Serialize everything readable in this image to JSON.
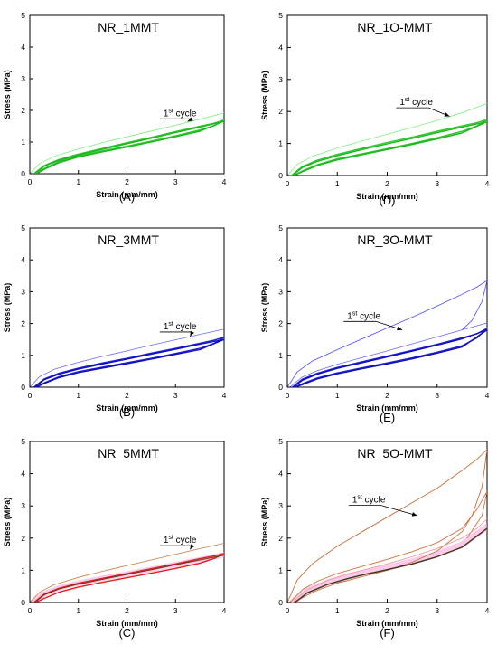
{
  "chart_data": [
    {
      "type": "line",
      "panel_label": "(A)",
      "title": "NR_1MMT",
      "xlabel": "Strain (mm/mm)",
      "ylabel": "Stress (MPa)",
      "xlim": [
        0,
        4
      ],
      "ylim": [
        0,
        5
      ],
      "xticks": [
        "0",
        "1",
        "2",
        "3",
        "4"
      ],
      "yticks": [
        "0",
        "1",
        "2",
        "3",
        "4",
        "5"
      ],
      "grid": false,
      "annotation": {
        "text": "cycle",
        "superscript": "st",
        "prefix": "1",
        "x": 2.75,
        "y": 1.82,
        "arrow_to": [
          3.25,
          1.65
        ]
      },
      "series": [
        {
          "color": "#7cf07c",
          "width": 0.8,
          "x": [
            0.0,
            0.2,
            0.5,
            1.0,
            1.5,
            2.0,
            2.5,
            3.0,
            3.5,
            4.0
          ],
          "y": [
            0.0,
            0.32,
            0.55,
            0.78,
            0.98,
            1.17,
            1.35,
            1.53,
            1.72,
            1.92
          ]
        },
        {
          "color": "#28c828",
          "width": 1.4,
          "x": [
            0.08,
            0.3,
            0.6,
            1.0,
            1.5,
            2.0,
            2.5,
            3.0,
            3.5,
            3.8,
            4.0,
            3.8,
            3.5,
            3.0,
            2.5,
            2.0,
            1.5,
            1.0,
            0.6,
            0.3,
            0.12
          ],
          "y": [
            0.0,
            0.26,
            0.45,
            0.62,
            0.8,
            0.98,
            1.15,
            1.33,
            1.5,
            1.6,
            1.7,
            1.52,
            1.38,
            1.2,
            1.03,
            0.87,
            0.72,
            0.56,
            0.38,
            0.17,
            0.0
          ]
        },
        {
          "color": "#1fb51f",
          "width": 1.4,
          "x": [
            0.1,
            0.3,
            0.6,
            1.0,
            1.5,
            2.0,
            2.5,
            3.0,
            3.5,
            4.0,
            3.5,
            3.0,
            2.5,
            2.0,
            1.5,
            1.0,
            0.6,
            0.3,
            0.14
          ],
          "y": [
            0.0,
            0.24,
            0.42,
            0.59,
            0.77,
            0.95,
            1.12,
            1.3,
            1.47,
            1.66,
            1.34,
            1.17,
            1.0,
            0.84,
            0.69,
            0.53,
            0.35,
            0.14,
            0.0
          ]
        }
      ]
    },
    {
      "type": "line",
      "panel_label": "(D)",
      "title": "NR_1O-MMT",
      "xlabel": "Strain (mm/mm)",
      "ylabel": "Stress (MPa)",
      "xlim": [
        0,
        4
      ],
      "ylim": [
        0,
        5
      ],
      "xticks": [
        "0",
        "1",
        "2",
        "3",
        "4"
      ],
      "yticks": [
        "0",
        "1",
        "2",
        "3",
        "4",
        "5"
      ],
      "grid": false,
      "annotation": {
        "text": "cycle",
        "superscript": "st",
        "prefix": "1",
        "x": 2.25,
        "y": 2.2,
        "arrow_to": [
          3.25,
          1.85
        ]
      },
      "series": [
        {
          "color": "#7cf07c",
          "width": 0.8,
          "x": [
            0.0,
            0.2,
            0.5,
            1.0,
            1.5,
            2.0,
            2.5,
            3.0,
            3.5,
            4.0
          ],
          "y": [
            0.0,
            0.35,
            0.6,
            0.86,
            1.08,
            1.29,
            1.5,
            1.72,
            1.96,
            2.25
          ]
        },
        {
          "color": "#28c828",
          "width": 1.4,
          "x": [
            0.08,
            0.3,
            0.6,
            1.0,
            1.5,
            2.0,
            2.5,
            3.0,
            3.5,
            3.8,
            4.0,
            3.8,
            3.5,
            3.0,
            2.5,
            2.0,
            1.5,
            1.0,
            0.6,
            0.3,
            0.12
          ],
          "y": [
            0.0,
            0.28,
            0.48,
            0.66,
            0.85,
            1.03,
            1.2,
            1.38,
            1.55,
            1.65,
            1.75,
            1.55,
            1.38,
            1.18,
            1.0,
            0.84,
            0.68,
            0.52,
            0.34,
            0.14,
            0.0
          ]
        },
        {
          "color": "#1fb51f",
          "width": 1.4,
          "x": [
            0.1,
            0.3,
            0.6,
            1.0,
            1.5,
            2.0,
            2.5,
            3.0,
            3.5,
            4.0,
            3.5,
            3.0,
            2.5,
            2.0,
            1.5,
            1.0,
            0.6,
            0.3,
            0.14
          ],
          "y": [
            0.0,
            0.25,
            0.44,
            0.62,
            0.81,
            0.99,
            1.16,
            1.34,
            1.51,
            1.68,
            1.33,
            1.14,
            0.97,
            0.81,
            0.65,
            0.49,
            0.31,
            0.12,
            0.0
          ]
        }
      ]
    },
    {
      "type": "line",
      "panel_label": "(B)",
      "title": "NR_3MMT",
      "xlabel": "Strain (mm/mm)",
      "ylabel": "Stress (MPa)",
      "xlim": [
        0,
        4
      ],
      "ylim": [
        0,
        5
      ],
      "xticks": [
        "0",
        "1",
        "2",
        "3",
        "4"
      ],
      "yticks": [
        "0",
        "1",
        "2",
        "3",
        "4",
        "5"
      ],
      "grid": false,
      "annotation": {
        "text": "cycle",
        "superscript": "st",
        "prefix": "1",
        "x": 2.75,
        "y": 1.82,
        "arrow_to": [
          3.3,
          1.6
        ]
      },
      "series": [
        {
          "color": "#6a6aff",
          "width": 0.8,
          "x": [
            0.0,
            0.2,
            0.5,
            1.0,
            1.5,
            2.0,
            2.5,
            3.0,
            3.5,
            4.0
          ],
          "y": [
            0.0,
            0.33,
            0.56,
            0.78,
            0.97,
            1.14,
            1.32,
            1.49,
            1.66,
            1.82
          ]
        },
        {
          "color": "#2020dd",
          "width": 1.4,
          "x": [
            0.08,
            0.3,
            0.6,
            1.0,
            1.5,
            2.0,
            2.5,
            3.0,
            3.5,
            3.8,
            4.0,
            3.8,
            3.5,
            3.0,
            2.5,
            2.0,
            1.5,
            1.0,
            0.6,
            0.3,
            0.12
          ],
          "y": [
            0.0,
            0.26,
            0.44,
            0.6,
            0.76,
            0.91,
            1.07,
            1.22,
            1.38,
            1.48,
            1.57,
            1.38,
            1.22,
            1.06,
            0.91,
            0.77,
            0.63,
            0.49,
            0.33,
            0.14,
            0.0
          ]
        },
        {
          "color": "#1010b8",
          "width": 1.4,
          "x": [
            0.1,
            0.3,
            0.6,
            1.0,
            1.5,
            2.0,
            2.5,
            3.0,
            3.5,
            4.0,
            3.5,
            3.0,
            2.5,
            2.0,
            1.5,
            1.0,
            0.6,
            0.3,
            0.14
          ],
          "y": [
            0.0,
            0.24,
            0.41,
            0.57,
            0.73,
            0.88,
            1.04,
            1.19,
            1.35,
            1.5,
            1.18,
            1.03,
            0.88,
            0.74,
            0.6,
            0.46,
            0.3,
            0.12,
            0.0
          ]
        }
      ]
    },
    {
      "type": "line",
      "panel_label": "(E)",
      "title": "NR_3O-MMT",
      "xlabel": "Strain (mm/mm)",
      "ylabel": "Stress (MPa)",
      "xlim": [
        0,
        4
      ],
      "ylim": [
        0,
        5
      ],
      "xticks": [
        "0",
        "1",
        "2",
        "3",
        "4"
      ],
      "yticks": [
        "0",
        "1",
        "2",
        "3",
        "4",
        "5"
      ],
      "grid": false,
      "annotation": {
        "text": "cycle",
        "superscript": "st",
        "prefix": "1",
        "x": 1.2,
        "y": 2.15,
        "arrow_to": [
          2.3,
          1.8
        ]
      },
      "series": [
        {
          "color": "#4b4bff",
          "width": 0.8,
          "x": [
            0.0,
            0.2,
            0.5,
            1.0,
            1.5,
            2.0,
            2.5,
            3.0,
            3.5,
            3.8,
            4.0,
            3.9,
            3.7,
            3.5
          ],
          "y": [
            0.0,
            0.48,
            0.82,
            1.18,
            1.52,
            1.86,
            2.2,
            2.55,
            2.92,
            3.15,
            3.35,
            2.7,
            2.1,
            1.8
          ]
        },
        {
          "color": "#6a6aff",
          "width": 0.8,
          "x": [
            0.05,
            0.3,
            0.6,
            1.0,
            1.5,
            2.0,
            2.5,
            3.0,
            3.5,
            4.0
          ],
          "y": [
            0.0,
            0.32,
            0.52,
            0.72,
            0.93,
            1.14,
            1.36,
            1.58,
            1.8,
            2.02
          ]
        },
        {
          "color": "#2020dd",
          "width": 1.4,
          "x": [
            0.1,
            0.3,
            0.6,
            1.0,
            1.5,
            2.0,
            2.5,
            3.0,
            3.5,
            3.8,
            4.0,
            3.8,
            3.5,
            3.0,
            2.5,
            2.0,
            1.5,
            1.0,
            0.6,
            0.3,
            0.14
          ],
          "y": [
            0.0,
            0.25,
            0.44,
            0.62,
            0.8,
            0.98,
            1.16,
            1.35,
            1.55,
            1.68,
            1.85,
            1.55,
            1.3,
            1.1,
            0.92,
            0.76,
            0.61,
            0.45,
            0.29,
            0.11,
            0.0
          ]
        },
        {
          "color": "#1010b8",
          "width": 1.4,
          "x": [
            0.12,
            0.3,
            0.6,
            1.0,
            1.5,
            2.0,
            2.5,
            3.0,
            3.5,
            4.0,
            3.5,
            3.0,
            2.5,
            2.0,
            1.5,
            1.0,
            0.6,
            0.3,
            0.16
          ],
          "y": [
            0.0,
            0.22,
            0.41,
            0.59,
            0.77,
            0.95,
            1.13,
            1.32,
            1.52,
            1.8,
            1.26,
            1.07,
            0.89,
            0.73,
            0.58,
            0.42,
            0.26,
            0.08,
            0.0
          ]
        }
      ]
    },
    {
      "type": "line",
      "panel_label": "(C)",
      "title": "NR_5MMT",
      "xlabel": "Strain (mm/mm)",
      "ylabel": "Stress (MPa)",
      "xlim": [
        0,
        4
      ],
      "ylim": [
        0,
        5
      ],
      "xticks": [
        "0",
        "1",
        "2",
        "3",
        "4"
      ],
      "yticks": [
        "0",
        "1",
        "2",
        "3",
        "4",
        "5"
      ],
      "grid": false,
      "annotation": {
        "text": "cycle",
        "superscript": "st",
        "prefix": "1",
        "x": 2.75,
        "y": 1.85,
        "arrow_to": [
          3.3,
          1.65
        ]
      },
      "series": [
        {
          "color": "#ff9fd9",
          "width": 6,
          "x": [
            0.05,
            0.3,
            0.6,
            1.0,
            1.5,
            2.0,
            2.5,
            3.0,
            3.5,
            4.0
          ],
          "y": [
            0.0,
            0.27,
            0.45,
            0.6,
            0.75,
            0.89,
            1.03,
            1.18,
            1.33,
            1.48
          ]
        },
        {
          "color": "#c87a3a",
          "width": 0.8,
          "x": [
            0.0,
            0.2,
            0.5,
            1.0,
            1.5,
            2.0,
            2.5,
            3.0,
            3.5,
            4.0
          ],
          "y": [
            0.0,
            0.32,
            0.55,
            0.78,
            0.97,
            1.15,
            1.32,
            1.5,
            1.67,
            1.84
          ]
        },
        {
          "color": "#e02020",
          "width": 1.4,
          "x": [
            0.08,
            0.3,
            0.6,
            1.0,
            1.5,
            2.0,
            2.5,
            3.0,
            3.5,
            3.8,
            4.0,
            3.8,
            3.5,
            3.0,
            2.5,
            2.0,
            1.5,
            1.0,
            0.6,
            0.3,
            0.12
          ],
          "y": [
            0.0,
            0.26,
            0.44,
            0.6,
            0.75,
            0.9,
            1.05,
            1.2,
            1.36,
            1.45,
            1.52,
            1.37,
            1.22,
            1.06,
            0.91,
            0.77,
            0.63,
            0.48,
            0.32,
            0.13,
            0.0
          ]
        },
        {
          "color": "#5a3a1a",
          "width": 1.0,
          "x": [
            0.1,
            0.3,
            0.6,
            1.0,
            1.5,
            2.0,
            2.5,
            3.0,
            3.5,
            4.0
          ],
          "y": [
            0.0,
            0.24,
            0.42,
            0.57,
            0.72,
            0.87,
            1.02,
            1.17,
            1.32,
            1.47
          ]
        }
      ]
    },
    {
      "type": "line",
      "panel_label": "(F)",
      "title": "NR_5O-MMT",
      "xlabel": "Strain (mm/mm)",
      "ylabel": "Stress (MPa)",
      "xlim": [
        0,
        4
      ],
      "ylim": [
        0,
        5
      ],
      "xticks": [
        "0",
        "1",
        "2",
        "3",
        "4"
      ],
      "yticks": [
        "0",
        "1",
        "2",
        "3",
        "4",
        "5"
      ],
      "grid": false,
      "annotation": {
        "text": "cycle",
        "superscript": "st",
        "prefix": "1",
        "x": 1.3,
        "y": 3.1,
        "arrow_to": [
          2.6,
          2.7
        ]
      },
      "series": [
        {
          "color": "#ff9fd9",
          "width": 7,
          "x": [
            0.1,
            0.4,
            0.8,
            1.2,
            1.6,
            2.0,
            2.5,
            3.0,
            3.5,
            4.0
          ],
          "y": [
            0.0,
            0.35,
            0.62,
            0.8,
            0.95,
            1.08,
            1.27,
            1.5,
            1.8,
            2.35
          ]
        },
        {
          "color": "#c8703a",
          "width": 0.9,
          "x": [
            0.0,
            0.2,
            0.5,
            1.0,
            1.5,
            2.0,
            2.5,
            3.0,
            3.5,
            3.8,
            4.0,
            3.9,
            3.7,
            3.5,
            3.0,
            2.5,
            2.0,
            1.5,
            1.0,
            0.6,
            0.3,
            0.1
          ],
          "y": [
            0.0,
            0.7,
            1.2,
            1.75,
            2.2,
            2.65,
            3.1,
            3.55,
            4.1,
            4.45,
            4.75,
            3.6,
            2.7,
            2.2,
            1.6,
            1.25,
            1.0,
            0.8,
            0.6,
            0.38,
            0.15,
            0.0
          ]
        },
        {
          "color": "#d07040",
          "width": 0.9,
          "x": [
            0.05,
            0.3,
            0.6,
            1.0,
            1.5,
            2.0,
            2.5,
            3.0,
            3.5,
            3.8,
            4.0,
            3.9,
            3.6
          ],
          "y": [
            0.0,
            0.4,
            0.66,
            0.9,
            1.12,
            1.34,
            1.58,
            1.86,
            2.3,
            2.9,
            3.45,
            2.7,
            2.0
          ]
        },
        {
          "color": "#e8a0a0",
          "width": 0.9,
          "x": [
            0.1,
            0.4,
            0.8,
            1.2,
            1.6,
            2.0,
            2.5,
            3.0,
            3.5,
            3.8,
            4.0
          ],
          "y": [
            0.0,
            0.4,
            0.68,
            0.88,
            1.04,
            1.2,
            1.42,
            1.68,
            2.0,
            2.3,
            2.6
          ]
        },
        {
          "color": "#3a3a1a",
          "width": 1.4,
          "x": [
            0.15,
            0.4,
            0.8,
            1.2,
            1.6,
            2.0,
            2.5,
            3.0,
            3.5,
            4.0
          ],
          "y": [
            0.0,
            0.3,
            0.56,
            0.74,
            0.89,
            1.02,
            1.2,
            1.42,
            1.72,
            2.3
          ]
        }
      ]
    }
  ]
}
